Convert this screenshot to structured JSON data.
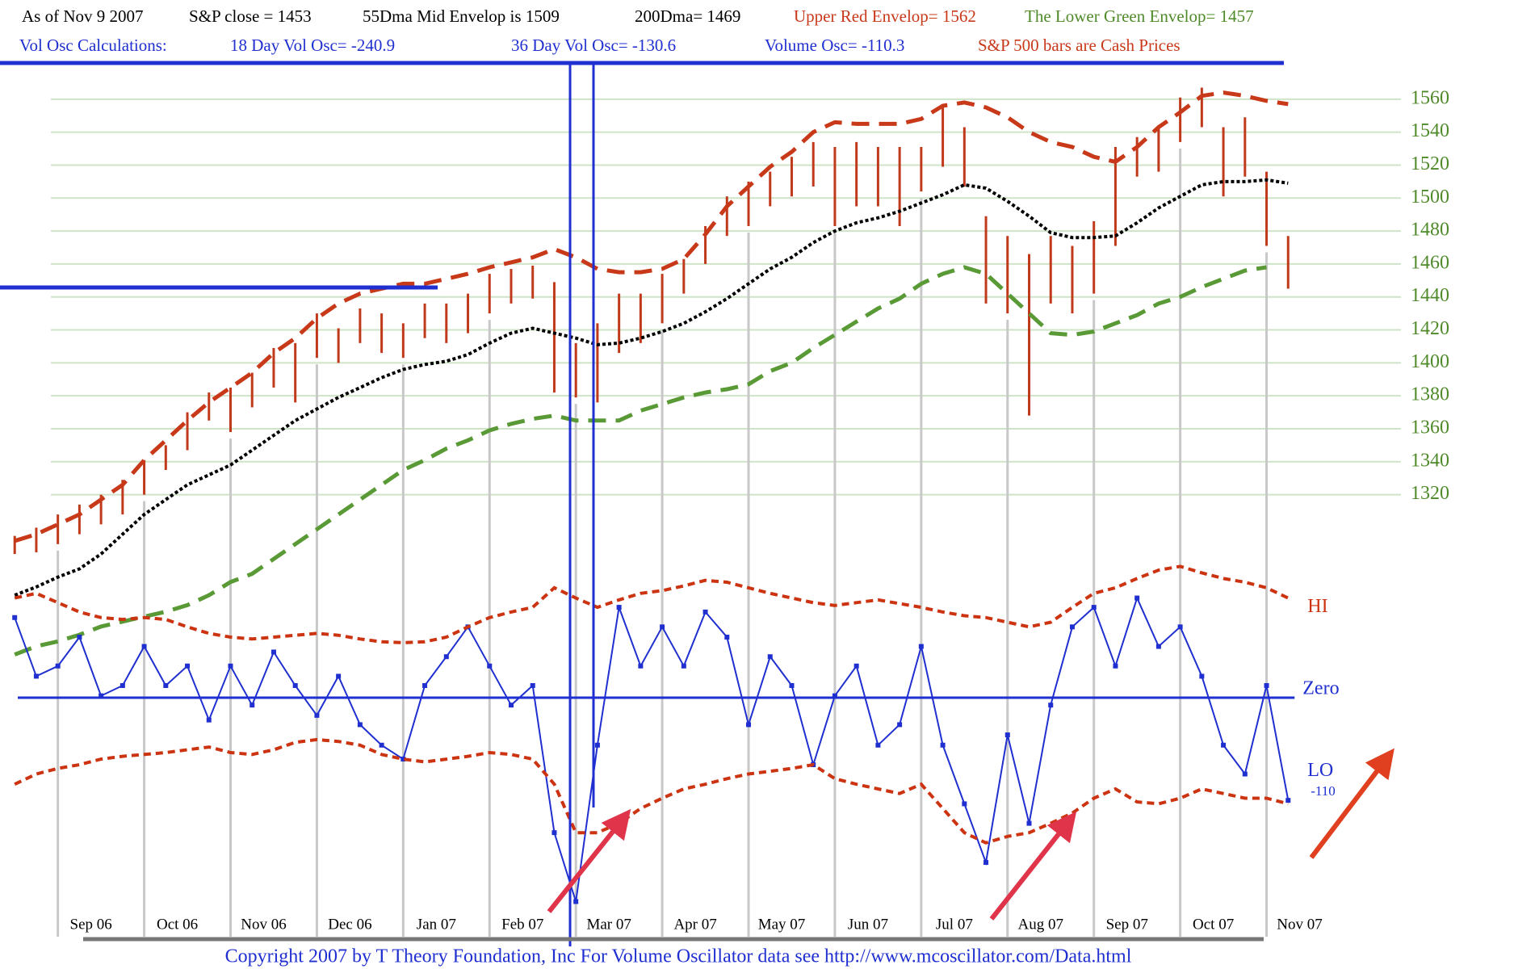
{
  "header": {
    "line1": [
      "As of Nov 9  2007",
      "S&P close = 1453",
      "55Dma Mid Envelop is  1509",
      "200Dma=  1469",
      "Upper Red Envelop= 1562",
      "The Lower Green Envelop=  1457"
    ],
    "line2": [
      "Vol Osc Calculations:",
      "18 Day Vol Osc= -240.9",
      "36 Day Vol Osc= -130.6",
      "Volume Osc= -110.3",
      "S&P 500 bars are Cash Prices"
    ]
  },
  "chart_data": [
    {
      "type": "range-bar",
      "categories": [
        null,
        null,
        "Sep 06",
        null,
        null,
        null,
        "Oct 06",
        null,
        null,
        null,
        "Nov 06",
        null,
        null,
        null,
        "Dec 06",
        null,
        null,
        null,
        "Jan 07",
        null,
        null,
        null,
        "Feb 07",
        null,
        null,
        null,
        "Mar 07",
        null,
        null,
        null,
        "Apr 07",
        null,
        null,
        null,
        "May 07",
        null,
        null,
        null,
        "Jun 07",
        null,
        null,
        null,
        "Jul 07",
        null,
        null,
        null,
        "Aug 07",
        null,
        null,
        null,
        "Sep 07",
        null,
        null,
        null,
        "Oct 07",
        null,
        null,
        null,
        "Nov 07",
        null
      ],
      "high": [
        1295,
        1300,
        1308,
        1314,
        1320,
        1329,
        1341,
        1350,
        1370,
        1382,
        1385,
        1394,
        1409,
        1412,
        1430,
        1421,
        1433,
        1430,
        1424,
        1436,
        1436,
        1442,
        1454,
        1457,
        1459,
        1449,
        1412,
        1424,
        1442,
        1442,
        1454,
        1463,
        1483,
        1501,
        1510,
        1516,
        1525,
        1534,
        1531,
        1534,
        1531,
        1531,
        1531,
        1555,
        1543,
        1489,
        1477,
        1466,
        1477,
        1471,
        1486,
        1531,
        1537,
        1543,
        1561,
        1567,
        1543,
        1549,
        1516,
        1477
      ],
      "low": [
        1284,
        1285,
        1290,
        1296,
        1302,
        1308,
        1320,
        1335,
        1347,
        1365,
        1358,
        1373,
        1385,
        1376,
        1403,
        1400,
        1412,
        1406,
        1403,
        1415,
        1412,
        1418,
        1430,
        1436,
        1439,
        1382,
        1379,
        1376,
        1406,
        1412,
        1424,
        1442,
        1460,
        1477,
        1483,
        1495,
        1501,
        1507,
        1483,
        1495,
        1495,
        1483,
        1504,
        1519,
        1507,
        1436,
        1430,
        1368,
        1436,
        1430,
        1442,
        1471,
        1513,
        1516,
        1534,
        1543,
        1501,
        1513,
        1471,
        1445
      ],
      "color": "#c0391b",
      "lines": [
        {
          "values": [
            1292,
            1296,
            1302,
            1308,
            1317,
            1326,
            1341,
            1353,
            1365,
            1376,
            1385,
            1394,
            1406,
            1415,
            1427,
            1436,
            1442,
            1445,
            1448,
            1448,
            1451,
            1454,
            1458,
            1461,
            1464,
            1469,
            1464,
            1457,
            1455,
            1455,
            1457,
            1463,
            1478,
            1495,
            1507,
            1519,
            1528,
            1540,
            1546,
            1545,
            1545,
            1545,
            1548,
            1556,
            1558,
            1555,
            1549,
            1540,
            1534,
            1531,
            1525,
            1522,
            1531,
            1543,
            1552,
            1562,
            1564,
            1562,
            1559,
            1557
          ],
          "color": "#c8391a",
          "style": "dashed"
        },
        {
          "values": [
            1259,
            1264,
            1270,
            1275,
            1284,
            1296,
            1308,
            1317,
            1326,
            1332,
            1338,
            1347,
            1356,
            1365,
            1372,
            1379,
            1385,
            1391,
            1396,
            1399,
            1401,
            1405,
            1412,
            1418,
            1421,
            1418,
            1415,
            1411,
            1412,
            1415,
            1419,
            1424,
            1431,
            1439,
            1448,
            1457,
            1464,
            1473,
            1480,
            1485,
            1488,
            1492,
            1497,
            1502,
            1508,
            1506,
            1498,
            1489,
            1479,
            1476,
            1476,
            1477,
            1485,
            1494,
            1501,
            1508,
            1510,
            1510,
            1511,
            1509
          ],
          "color": "#000000",
          "style": "dotted"
        },
        {
          "values": [
            1223,
            1228,
            1231,
            1235,
            1240,
            1243,
            1246,
            1249,
            1253,
            1259,
            1267,
            1272,
            1281,
            1290,
            1299,
            1308,
            1317,
            1326,
            1335,
            1341,
            1348,
            1353,
            1359,
            1363,
            1366,
            1368,
            1365,
            1365,
            1365,
            1371,
            1375,
            1379,
            1382,
            1384,
            1387,
            1395,
            1400,
            1409,
            1417,
            1425,
            1433,
            1439,
            1448,
            1454,
            1458,
            1454,
            1442,
            1430,
            1418,
            1417,
            1419,
            1424,
            1429,
            1436,
            1440,
            1446,
            1451,
            1456,
            1458,
            null
          ],
          "color": "#5a9a36",
          "style": "dashed"
        }
      ],
      "ylim": [
        1220,
        1575
      ],
      "yticks": [
        1320,
        1340,
        1360,
        1380,
        1400,
        1420,
        1440,
        1460,
        1480,
        1500,
        1520,
        1540,
        1560
      ],
      "grid": true
    },
    {
      "type": "line",
      "series": [
        {
          "values": [
            86,
            23,
            34,
            65,
            2,
            13,
            55,
            13,
            34,
            -24,
            34,
            -8,
            49,
            13,
            -19,
            23,
            -29,
            -51,
            -66,
            13,
            44,
            76,
            34,
            -8,
            13,
            -145,
            -219,
            -51,
            97,
            34,
            76,
            34,
            92,
            65,
            -29,
            44,
            13,
            -72,
            2,
            34,
            -51,
            -29,
            55,
            -51,
            -114,
            -177,
            -40,
            -135,
            -8,
            76,
            97,
            34,
            107,
            55,
            76,
            23,
            -51,
            -82,
            13,
            -110.3
          ],
          "value_labels": [
            null,
            null,
            null,
            null,
            null,
            null,
            null,
            null,
            null,
            null,
            null,
            null,
            null,
            null,
            null,
            null,
            null,
            null,
            null,
            null,
            null,
            null,
            null,
            null,
            null,
            null,
            null,
            null,
            null,
            null,
            null,
            null,
            null,
            null,
            null,
            null,
            null,
            null,
            null,
            null,
            null,
            null,
            null,
            null,
            null,
            null,
            null,
            null,
            null,
            null,
            null,
            null,
            null,
            null,
            null,
            null,
            null,
            null,
            null,
            "-110"
          ],
          "color": "#1f2fd0",
          "style": "solid"
        },
        {
          "name": "HI",
          "values": [
            107,
            112,
            102,
            92,
            86,
            84,
            86,
            84,
            76,
            69,
            65,
            63,
            65,
            67,
            69,
            67,
            63,
            60,
            59,
            60,
            65,
            76,
            86,
            92,
            97,
            118,
            107,
            97,
            105,
            112,
            115,
            120,
            126,
            124,
            118,
            112,
            107,
            102,
            99,
            102,
            105,
            101,
            97,
            92,
            88,
            86,
            81,
            76,
            81,
            97,
            112,
            118,
            128,
            137,
            141,
            134,
            128,
            124,
            118,
            107
          ],
          "color": "#cc3311",
          "style": "dashed"
        },
        {
          "name": "LO",
          "values": [
            -93,
            -82,
            -76,
            -72,
            -66,
            -63,
            -61,
            -59,
            -56,
            -53,
            -59,
            -61,
            -56,
            -48,
            -45,
            -47,
            -51,
            -61,
            -66,
            -69,
            -66,
            -63,
            -59,
            -61,
            -66,
            -93,
            -145,
            -145,
            -135,
            -119,
            -108,
            -98,
            -93,
            -87,
            -82,
            -79,
            -76,
            -72,
            -87,
            -93,
            -98,
            -103,
            -93,
            -119,
            -145,
            -156,
            -149,
            -145,
            -135,
            -124,
            -108,
            -98,
            -112,
            -114,
            -108,
            -98,
            -103,
            -108,
            -108,
            -114
          ],
          "color": "#cc3311",
          "style": "dashed"
        }
      ],
      "reference_line": {
        "value": 0,
        "label": "Zero",
        "color": "#1f2fd0"
      },
      "ylim": [
        -240,
        150
      ]
    }
  ],
  "footer": "Copyright 2007 by T Theory Foundation, Inc  For Volume Oscillator data see http://www.mcoscillator.com/Data.html"
}
